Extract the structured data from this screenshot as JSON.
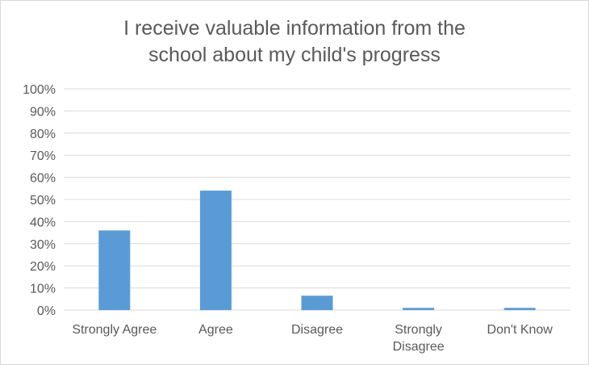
{
  "chart_data": {
    "type": "bar",
    "title_lines": [
      "I receive valuable information from the",
      "school about my child's progress"
    ],
    "categories": [
      [
        "Strongly Agree"
      ],
      [
        "Agree"
      ],
      [
        "Disagree"
      ],
      [
        "Strongly",
        "Disagree"
      ],
      [
        "Don't Know"
      ]
    ],
    "values": [
      36,
      54,
      6.5,
      1,
      1
    ],
    "ylim": [
      0,
      100
    ],
    "yticks": [
      "0%",
      "10%",
      "20%",
      "30%",
      "40%",
      "50%",
      "60%",
      "70%",
      "80%",
      "90%",
      "100%"
    ],
    "xlabel": "",
    "ylabel": "",
    "grid": true,
    "bar_color": "#5b9bd5",
    "grid_color": "#d9d9d9"
  }
}
